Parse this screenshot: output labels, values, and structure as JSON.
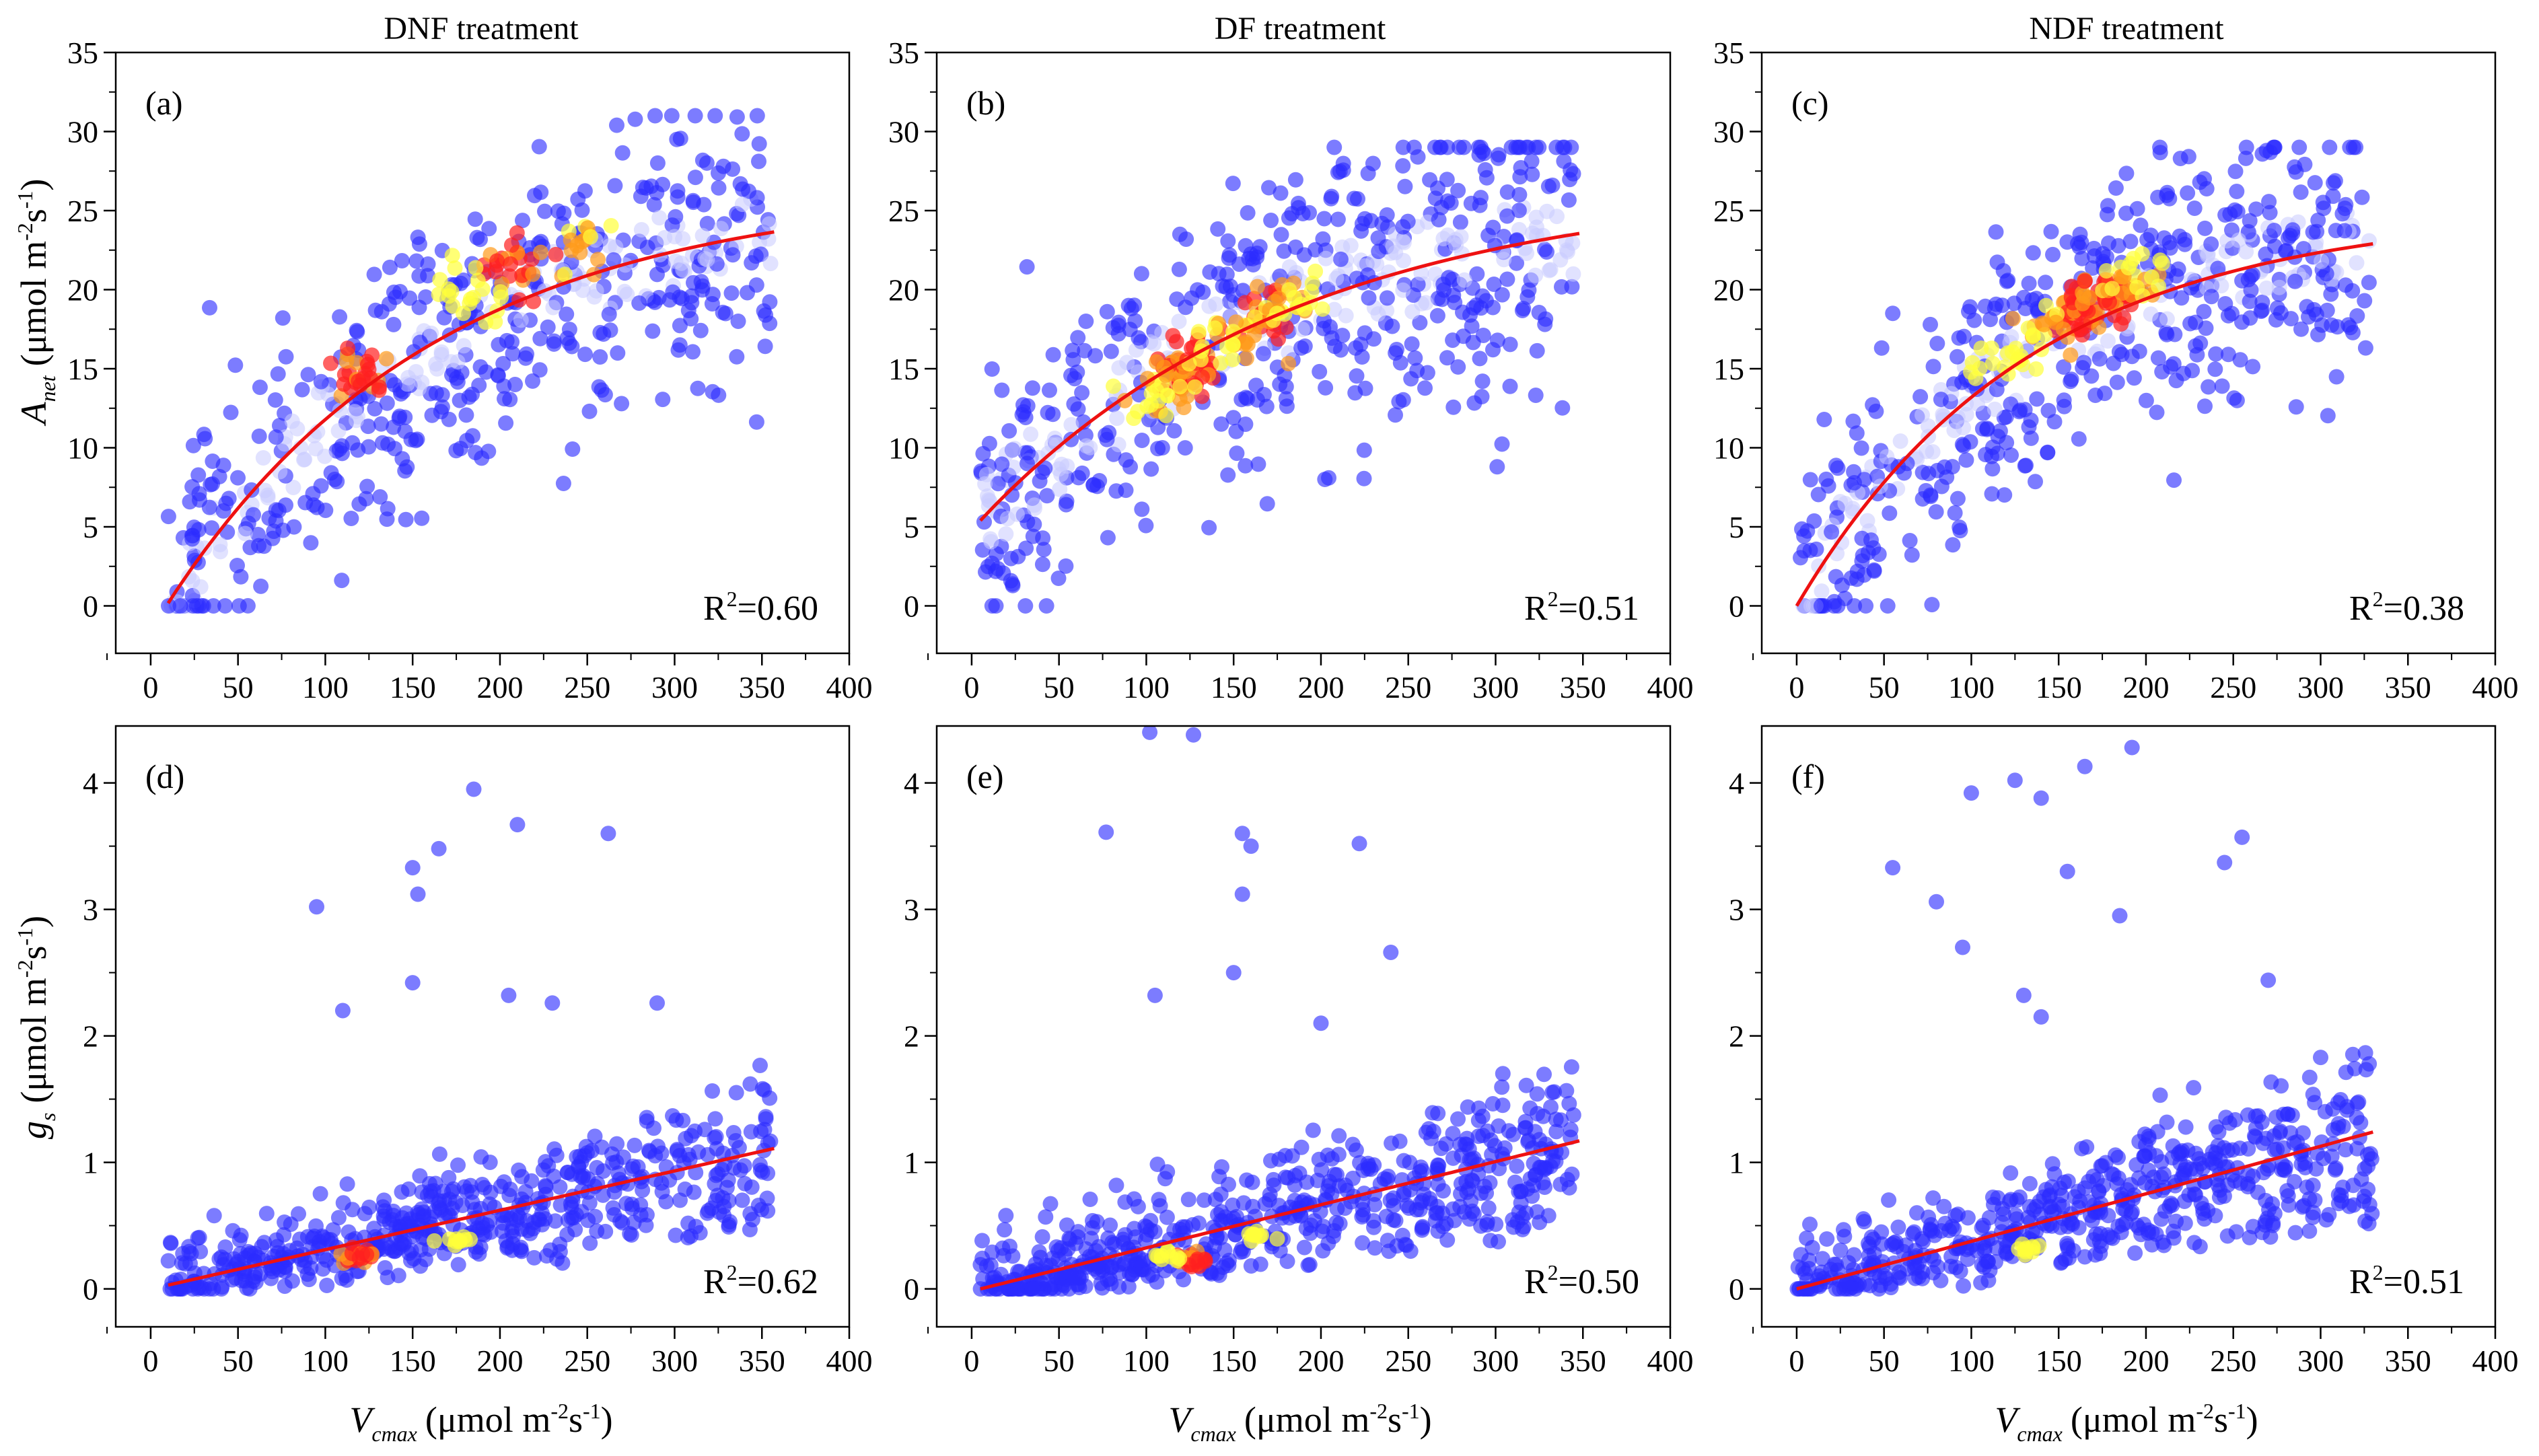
{
  "figure": {
    "column_titles": [
      "DNF treatment",
      "DF treatment",
      "NDF treatment"
    ],
    "x_axis_title": {
      "main": "V",
      "sub": "cmax",
      "unit": "(μmol m",
      "sup1": "-2",
      "mid": "s",
      "sup2": "-1",
      "end": ")"
    },
    "y_axis_title_top": {
      "main": "A",
      "sub": "net",
      "unit": "(μmol m",
      "sup1": "-2",
      "mid": "s",
      "sup2": "-1",
      "end": ")"
    },
    "y_axis_title_bottom": {
      "main": "g",
      "sub": "s",
      "unit": "(μmol m",
      "sup1": "-2",
      "mid": "s",
      "sup2": "-1",
      "end": ")"
    },
    "colors": {
      "point_low_density": "#2b2bff",
      "point_mid_density": "#c8cbff",
      "point_high_density_1": "#ffff3a",
      "point_high_density_2": "#ff9a1a",
      "point_high_density_3": "#ff2020",
      "fit_line": "#ee1111"
    }
  },
  "chart_data": [
    {
      "panel": "(a)",
      "column": "DNF treatment",
      "type": "scatter",
      "xlim": [
        -20,
        400
      ],
      "ylim": [
        -3,
        35
      ],
      "xticks": [
        0,
        50,
        100,
        150,
        200,
        250,
        300,
        350,
        400
      ],
      "yticks": [
        0,
        5,
        10,
        15,
        20,
        25,
        30,
        35
      ],
      "r2_label": "R",
      "r2_value": "=0.60",
      "fit": {
        "kind": "saturating",
        "a": 26.4,
        "b": 0.0065,
        "x0": 9,
        "offset": 0,
        "x_range": [
          10,
          357
        ]
      },
      "cloud": {
        "n": 560,
        "seed": 11,
        "x_range": [
          10,
          355
        ],
        "spread": 4.2,
        "clip": [
          0,
          31
        ]
      },
      "hotspots": [
        {
          "x": 120,
          "y": 14.8,
          "level": 3
        },
        {
          "x": 207,
          "y": 21.6,
          "level": 3
        },
        {
          "x": 244,
          "y": 22.4,
          "level": 2
        },
        {
          "x": 175,
          "y": 20.2,
          "level": 1
        },
        {
          "x": 185,
          "y": 19.2,
          "level": 1
        }
      ]
    },
    {
      "panel": "(b)",
      "column": "DF treatment",
      "type": "scatter",
      "xlim": [
        -20,
        400
      ],
      "ylim": [
        -3,
        35
      ],
      "xticks": [
        0,
        50,
        100,
        150,
        200,
        250,
        300,
        350,
        400
      ],
      "yticks": [
        0,
        5,
        10,
        15,
        20,
        25,
        30,
        35
      ],
      "r2_label": "R",
      "r2_value": "=0.51",
      "fit": {
        "kind": "saturating_offset",
        "a": 22.0,
        "b": 0.0055,
        "x0": 0,
        "offset": 4.8,
        "x_range": [
          5,
          348
        ]
      },
      "cloud": {
        "n": 600,
        "seed": 23,
        "x_range": [
          5,
          345
        ],
        "spread": 4.6,
        "clip": [
          0,
          29
        ]
      },
      "hotspots": [
        {
          "x": 120,
          "y": 14.8,
          "level": 3
        },
        {
          "x": 130,
          "y": 15.5,
          "level": 3
        },
        {
          "x": 165,
          "y": 18.2,
          "level": 3
        },
        {
          "x": 150,
          "y": 17.0,
          "level": 2
        },
        {
          "x": 110,
          "y": 14.0,
          "level": 2
        },
        {
          "x": 180,
          "y": 18.8,
          "level": 2
        },
        {
          "x": 100,
          "y": 13.5,
          "level": 1
        },
        {
          "x": 140,
          "y": 16.0,
          "level": 1
        },
        {
          "x": 190,
          "y": 19.5,
          "level": 1
        }
      ]
    },
    {
      "panel": "(c)",
      "column": "NDF treatment",
      "type": "scatter",
      "xlim": [
        -20,
        400
      ],
      "ylim": [
        -3,
        35
      ],
      "xticks": [
        0,
        50,
        100,
        150,
        200,
        250,
        300,
        350,
        400
      ],
      "yticks": [
        0,
        5,
        10,
        15,
        20,
        25,
        30,
        35
      ],
      "r2_label": "R",
      "r2_value": "=0.38",
      "fit": {
        "kind": "saturating",
        "a": 25.0,
        "b": 0.0075,
        "x0": 0,
        "offset": 0,
        "x_range": [
          0,
          330
        ]
      },
      "cloud": {
        "n": 560,
        "seed": 37,
        "x_range": [
          0,
          330
        ],
        "spread": 3.9,
        "clip": [
          0,
          29
        ]
      },
      "hotspots": [
        {
          "x": 160,
          "y": 18.6,
          "level": 3
        },
        {
          "x": 172,
          "y": 19.5,
          "level": 3
        },
        {
          "x": 180,
          "y": 20.0,
          "level": 3
        },
        {
          "x": 145,
          "y": 17.5,
          "level": 2
        },
        {
          "x": 190,
          "y": 20.5,
          "level": 2
        },
        {
          "x": 125,
          "y": 16.0,
          "level": 1
        },
        {
          "x": 110,
          "y": 14.5,
          "level": 1
        },
        {
          "x": 200,
          "y": 21.0,
          "level": 1
        }
      ]
    },
    {
      "panel": "(d)",
      "column": "DNF treatment",
      "type": "scatter",
      "xlim": [
        -20,
        400
      ],
      "ylim": [
        -0.3,
        4.45
      ],
      "xticks": [
        0,
        50,
        100,
        150,
        200,
        250,
        300,
        350,
        400
      ],
      "yticks": [
        0,
        1,
        2,
        3,
        4
      ],
      "r2_label": "R",
      "r2_value": "=0.62",
      "fit": {
        "kind": "linear",
        "x_range": [
          10,
          357
        ],
        "y_range": [
          0.03,
          1.11
        ]
      },
      "cloud": {
        "n": 560,
        "seed": 51,
        "x_range": [
          10,
          355
        ],
        "base": 0.55,
        "spread": 0.45,
        "clip": [
          0,
          4
        ]
      },
      "outliers": [
        [
          95,
          3.02
        ],
        [
          150,
          3.33
        ],
        [
          153,
          3.12
        ],
        [
          165,
          3.48
        ],
        [
          185,
          3.95
        ],
        [
          210,
          3.67
        ],
        [
          262,
          3.6
        ],
        [
          110,
          2.2
        ],
        [
          150,
          2.42
        ],
        [
          205,
          2.32
        ],
        [
          230,
          2.26
        ],
        [
          290,
          2.26
        ]
      ],
      "hotspots": [
        {
          "x": 120,
          "y": 0.26,
          "level": 3
        },
        {
          "x": 175,
          "y": 0.38,
          "level": 1
        }
      ]
    },
    {
      "panel": "(e)",
      "column": "DF treatment",
      "type": "scatter",
      "xlim": [
        -20,
        400
      ],
      "ylim": [
        -0.3,
        4.45
      ],
      "xticks": [
        0,
        50,
        100,
        150,
        200,
        250,
        300,
        350,
        400
      ],
      "yticks": [
        0,
        1,
        2,
        3,
        4
      ],
      "r2_label": "R",
      "r2_value": "=0.50",
      "fit": {
        "kind": "linear",
        "x_range": [
          5,
          348
        ],
        "y_range": [
          0.0,
          1.17
        ]
      },
      "cloud": {
        "n": 600,
        "seed": 67,
        "x_range": [
          5,
          345
        ],
        "base": 0.55,
        "spread": 0.45,
        "clip": [
          0,
          4.4
        ]
      },
      "outliers": [
        [
          77,
          3.61
        ],
        [
          102,
          4.4
        ],
        [
          127,
          4.38
        ],
        [
          155,
          3.6
        ],
        [
          155,
          3.12
        ],
        [
          160,
          3.5
        ],
        [
          222,
          3.52
        ],
        [
          240,
          2.66
        ],
        [
          150,
          2.5
        ],
        [
          105,
          2.32
        ],
        [
          200,
          2.1
        ]
      ],
      "hotspots": [
        {
          "x": 128,
          "y": 0.22,
          "level": 3
        },
        {
          "x": 112,
          "y": 0.26,
          "level": 1
        },
        {
          "x": 165,
          "y": 0.42,
          "level": 1
        }
      ]
    },
    {
      "panel": "(f)",
      "column": "NDF treatment",
      "type": "scatter",
      "xlim": [
        -20,
        400
      ],
      "ylim": [
        -0.3,
        4.45
      ],
      "xticks": [
        0,
        50,
        100,
        150,
        200,
        250,
        300,
        350,
        400
      ],
      "yticks": [
        0,
        1,
        2,
        3,
        4
      ],
      "r2_label": "R",
      "r2_value": "=0.51",
      "fit": {
        "kind": "linear",
        "x_range": [
          0,
          330
        ],
        "y_range": [
          0.0,
          1.24
        ]
      },
      "cloud": {
        "n": 560,
        "seed": 83,
        "x_range": [
          0,
          330
        ],
        "base": 0.55,
        "spread": 0.45,
        "clip": [
          0,
          4.3
        ]
      },
      "outliers": [
        [
          55,
          3.33
        ],
        [
          80,
          3.06
        ],
        [
          95,
          2.7
        ],
        [
          100,
          3.92
        ],
        [
          125,
          4.02
        ],
        [
          140,
          3.88
        ],
        [
          155,
          3.3
        ],
        [
          165,
          4.13
        ],
        [
          185,
          2.95
        ],
        [
          192,
          4.28
        ],
        [
          245,
          3.37
        ],
        [
          255,
          3.57
        ],
        [
          270,
          2.44
        ],
        [
          300,
          1.83
        ],
        [
          130,
          2.32
        ],
        [
          140,
          2.15
        ]
      ],
      "hotspots": [
        {
          "x": 135,
          "y": 0.3,
          "level": 1
        }
      ]
    }
  ]
}
